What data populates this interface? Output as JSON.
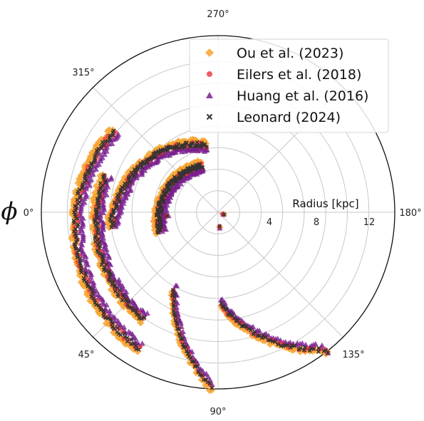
{
  "chart_data": {
    "type": "scatter",
    "projection": "polar",
    "title": "",
    "radial_label": "Radius [kpc]",
    "angular_label": "ϕ",
    "radial_ticks": [
      "4",
      "8",
      "12"
    ],
    "angular_tick_labels": [
      {
        "deg": 0,
        "label": "0°"
      },
      {
        "deg": 45,
        "label": "45°"
      },
      {
        "deg": 90,
        "label": "90°"
      },
      {
        "deg": 135,
        "label": "135°"
      },
      {
        "deg": 180,
        "label": "180°"
      },
      {
        "deg": 270,
        "label": "270°"
      },
      {
        "deg": 315,
        "label": "315°"
      }
    ],
    "rlim": [
      0,
      16.4
    ],
    "angular_zero": "left",
    "angular_direction": "counterclockwise-on-screen-top-to-left",
    "grid": true,
    "legend_position": "top-right",
    "series": [
      {
        "name": "Ou et al. (2023)",
        "marker": "diamond",
        "color": "#f7a531"
      },
      {
        "name": "Eilers et al. (2018)",
        "marker": "circle",
        "color": "#e8343f"
      },
      {
        "name": "Huang et al. (2016)",
        "marker": "triangle",
        "color": "#7b1f8e"
      },
      {
        "name": "Leonard (2024)",
        "marker": "x",
        "color": "#333333"
      }
    ],
    "arms": [
      {
        "phi_range": [
          -71,
          19
        ],
        "r_start": 4.6,
        "r_end": 5.7,
        "note": "inner arc near center"
      },
      {
        "phi_range": [
          -80,
          8
        ],
        "r_start": 6.3,
        "r_end": 10.0
      },
      {
        "phi_range": [
          -38,
          60
        ],
        "r_start": 12.2,
        "r_end": 14.6
      },
      {
        "phi_range": [
          -18,
          55
        ],
        "r_start": 11.0,
        "r_end": 12.1
      },
      {
        "phi_range": [
          60,
          88
        ],
        "r_start": 8.2,
        "r_end": 16.3
      },
      {
        "phi_range": [
          92,
          128
        ],
        "r_start": 8.6,
        "r_end": 16.2
      }
    ],
    "isolated_points": [
      {
        "phi": 4,
        "r": 4.7
      },
      {
        "phi": 96,
        "r": 1.4
      },
      {
        "phi": 160,
        "r": 0.5
      },
      {
        "phi": 128,
        "r": 16.5
      }
    ]
  }
}
